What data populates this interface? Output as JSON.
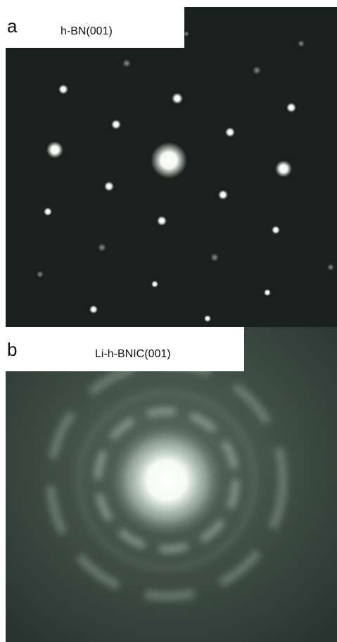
{
  "panels": [
    {
      "letter": "a",
      "label": "h-BN(001)"
    },
    {
      "letter": "b",
      "label": "Li-h-BNIC(001)"
    }
  ]
}
